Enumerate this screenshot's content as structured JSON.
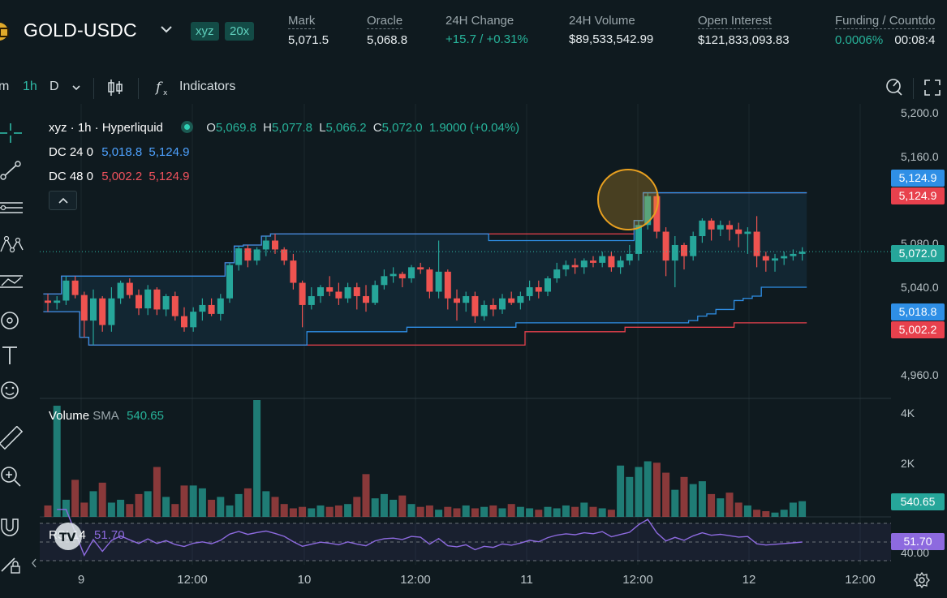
{
  "header": {
    "pair": "GOLD-USDC",
    "tags": [
      "xyz",
      "20x"
    ],
    "stats": [
      {
        "label": "Mark",
        "value": "5,071.5",
        "color": "default"
      },
      {
        "label": "Oracle",
        "value": "5,068.8",
        "color": "default"
      },
      {
        "label": "24H Change",
        "value": "+15.7 / +0.31%",
        "color": "green"
      },
      {
        "label": "24H Volume",
        "value": "$89,533,542.99",
        "color": "default"
      },
      {
        "label": "Open Interest",
        "value": "$121,833,093.83",
        "color": "default"
      },
      {
        "label": "Funding / Countdo",
        "value": "0.0006%",
        "value2": "00:08:4",
        "color": "green"
      }
    ]
  },
  "toolbar": {
    "interval_partial": "m",
    "interval_active": "1h",
    "interval_day": "D",
    "indicators_label": "Indicators"
  },
  "legend": {
    "symbol": "xyz · 1h · Hyperliquid",
    "o_label": "O",
    "o": "5,069.8",
    "h_label": "H",
    "h": "5,077.8",
    "l_label": "L",
    "l": "5,066.2",
    "c_label": "C",
    "c": "5,072.0",
    "change": "1.9000 (+0.04%)",
    "dc1_label": "DC 24 0",
    "dc1_lower": "5,018.8",
    "dc1_upper": "5,124.9",
    "dc2_label": "DC 48 0",
    "dc2_lower": "5,002.2",
    "dc2_upper": "5,124.9",
    "volume_label": "Volume",
    "volume_sma_label": "SMA",
    "volume_sma": "540.65",
    "rsi_label": "RSI 14",
    "rsi_value": "51.70"
  },
  "price_scale": {
    "ticks": [
      "5,200.0",
      "5,160.0",
      "5,080.0",
      "5,040.0",
      "4,960.0"
    ],
    "labels": {
      "dc1_upper": "5,124.9",
      "dc2_upper": "5,124.9",
      "last": "5,072.0",
      "dc1_lower": "5,018.8",
      "dc2_lower": "5,002.2",
      "volume": "540.65",
      "rsi": "51.70"
    },
    "volume_ticks": [
      "4K",
      "2K"
    ],
    "rsi_tick": "40.00"
  },
  "time_axis": [
    "9",
    "12:00",
    "10",
    "12:00",
    "11",
    "12:00",
    "12",
    "12:00"
  ],
  "colors": {
    "up": "#26a69a",
    "down": "#ef5350",
    "dc_blue": "#2f8fe6",
    "dc_red": "#e8414d",
    "rsi": "#8d6adf",
    "accent": "#2fb9a6"
  },
  "chart_data": {
    "type": "candlestick",
    "interval": "1h",
    "series_price": [
      [
        5028,
        5034,
        5018,
        5026
      ],
      [
        5026,
        5032,
        5020,
        5028
      ],
      [
        5028,
        5050,
        5024,
        5046
      ],
      [
        5046,
        5050,
        5030,
        5033
      ],
      [
        5033,
        5036,
        4995,
        5010
      ],
      [
        5010,
        5038,
        4988,
        5030
      ],
      [
        5030,
        5032,
        5000,
        5006
      ],
      [
        5006,
        5040,
        5000,
        5030
      ],
      [
        5030,
        5046,
        5025,
        5044
      ],
      [
        5044,
        5048,
        5030,
        5033
      ],
      [
        5033,
        5038,
        5015,
        5021
      ],
      [
        5021,
        5042,
        5015,
        5038
      ],
      [
        5038,
        5040,
        5015,
        5020
      ],
      [
        5020,
        5034,
        5014,
        5032
      ],
      [
        5032,
        5036,
        5010,
        5014
      ],
      [
        5014,
        5022,
        5000,
        5004
      ],
      [
        5004,
        5022,
        5000,
        5018
      ],
      [
        5018,
        5030,
        5010,
        5024
      ],
      [
        5024,
        5030,
        5014,
        5016
      ],
      [
        5016,
        5034,
        5010,
        5030
      ],
      [
        5030,
        5062,
        5026,
        5060
      ],
      [
        5060,
        5077,
        5055,
        5075
      ],
      [
        5075,
        5078,
        5058,
        5064
      ],
      [
        5064,
        5076,
        5060,
        5074
      ],
      [
        5074,
        5086,
        5068,
        5082
      ],
      [
        5082,
        5088,
        5070,
        5074
      ],
      [
        5074,
        5076,
        5060,
        5064
      ],
      [
        5064,
        5070,
        5038,
        5044
      ],
      [
        5044,
        5046,
        5004,
        5024
      ],
      [
        5024,
        5040,
        5020,
        5032
      ],
      [
        5032,
        5042,
        5026,
        5040
      ],
      [
        5040,
        5050,
        5032,
        5036
      ],
      [
        5036,
        5044,
        5024,
        5030
      ],
      [
        5030,
        5044,
        5026,
        5040
      ],
      [
        5040,
        5044,
        5020,
        5032
      ],
      [
        5032,
        5042,
        5018,
        5026
      ],
      [
        5026,
        5046,
        5024,
        5042
      ],
      [
        5042,
        5056,
        5038,
        5050
      ],
      [
        5050,
        5058,
        5044,
        5052
      ],
      [
        5052,
        5054,
        5040,
        5048
      ],
      [
        5048,
        5060,
        5044,
        5058
      ],
      [
        5058,
        5062,
        5052,
        5056
      ],
      [
        5056,
        5058,
        5030,
        5036
      ],
      [
        5036,
        5082,
        5030,
        5054
      ],
      [
        5054,
        5056,
        5020,
        5030
      ],
      [
        5030,
        5038,
        5010,
        5026
      ],
      [
        5026,
        5036,
        5018,
        5032
      ],
      [
        5032,
        5036,
        5008,
        5014
      ],
      [
        5014,
        5028,
        5010,
        5024
      ],
      [
        5024,
        5030,
        5014,
        5020
      ],
      [
        5020,
        5034,
        5016,
        5030
      ],
      [
        5030,
        5036,
        5024,
        5026
      ],
      [
        5026,
        5036,
        5020,
        5032
      ],
      [
        5032,
        5046,
        5028,
        5040
      ],
      [
        5040,
        5046,
        5030,
        5036
      ],
      [
        5036,
        5050,
        5032,
        5048
      ],
      [
        5048,
        5062,
        5044,
        5056
      ],
      [
        5056,
        5064,
        5050,
        5060
      ],
      [
        5060,
        5066,
        5052,
        5058
      ],
      [
        5058,
        5066,
        5052,
        5064
      ],
      [
        5064,
        5068,
        5058,
        5062
      ],
      [
        5062,
        5072,
        5058,
        5068
      ],
      [
        5068,
        5072,
        5054,
        5058
      ],
      [
        5058,
        5068,
        5052,
        5064
      ],
      [
        5064,
        5078,
        5060,
        5070
      ],
      [
        5070,
        5100,
        5064,
        5096
      ],
      [
        5096,
        5125,
        5092,
        5122
      ],
      [
        5122,
        5124,
        5084,
        5090
      ],
      [
        5090,
        5094,
        5050,
        5064
      ],
      [
        5064,
        5086,
        5040,
        5078
      ],
      [
        5078,
        5080,
        5056,
        5068
      ],
      [
        5068,
        5090,
        5064,
        5086
      ],
      [
        5086,
        5102,
        5080,
        5100
      ],
      [
        5100,
        5102,
        5082,
        5092
      ],
      [
        5092,
        5100,
        5086,
        5096
      ],
      [
        5096,
        5100,
        5082,
        5092
      ],
      [
        5092,
        5098,
        5076,
        5088
      ],
      [
        5088,
        5094,
        5070,
        5090
      ],
      [
        5090,
        5104,
        5058,
        5068
      ],
      [
        5068,
        5072,
        5054,
        5064
      ],
      [
        5064,
        5070,
        5054,
        5066
      ],
      [
        5066,
        5072,
        5060,
        5068
      ],
      [
        5068,
        5074,
        5064,
        5070
      ],
      [
        5070,
        5076,
        5064,
        5072
      ]
    ],
    "series_volume": [
      400,
      3900,
      600,
      1300,
      500,
      900,
      1200,
      500,
      600,
      450,
      800,
      900,
      1750,
      700,
      450,
      1100,
      1100,
      1000,
      600,
      700,
      400,
      800,
      1000,
      4100,
      900,
      700,
      450,
      300,
      350,
      300,
      400,
      350,
      400,
      450,
      700,
      1500,
      650,
      800,
      600,
      750,
      450,
      350,
      400,
      250,
      350,
      300,
      400,
      300,
      350,
      400,
      300,
      450,
      350,
      300,
      250,
      350,
      300,
      400,
      350,
      500,
      350,
      300,
      250,
      1800,
      1400,
      1750,
      1950,
      1900,
      1550,
      950,
      1400,
      1150,
      1250,
      800,
      650,
      850,
      500,
      400,
      250,
      200,
      150,
      250,
      500,
      550
    ],
    "volume_sma": 540.65,
    "rsi_value": 51.7,
    "dc24": {
      "upper_last": 5124.9,
      "lower_last": 5018.8
    },
    "dc48": {
      "upper_last": 5124.9,
      "lower_last": 5002.2
    },
    "y_range": [
      4940,
      5205
    ],
    "volume_ticks": [
      2000,
      4000
    ],
    "rsi_ticks": [
      40
    ],
    "x_labels": [
      "9",
      "12:00",
      "10",
      "12:00",
      "11",
      "12:00",
      "12",
      "12:00"
    ],
    "last_price": 5072.0
  }
}
